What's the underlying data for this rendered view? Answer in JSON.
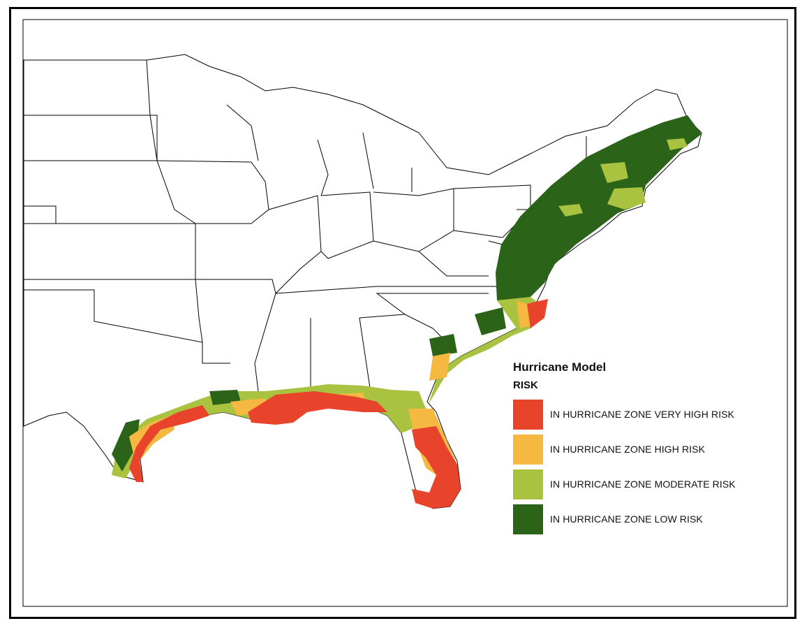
{
  "legend": {
    "title": "Hurricane Model",
    "subtitle": "RISK",
    "items": [
      {
        "label": "IN HURRICANE ZONE VERY HIGH RISK",
        "color": "#e8442c"
      },
      {
        "label": "IN HURRICANE ZONE HIGH RISK",
        "color": "#f5b942"
      },
      {
        "label": "IN HURRICANE ZONE MODERATE RISK",
        "color": "#a9c23f"
      },
      {
        "label": "IN HURRICANE ZONE LOW RISK",
        "color": "#2b6419"
      }
    ]
  }
}
